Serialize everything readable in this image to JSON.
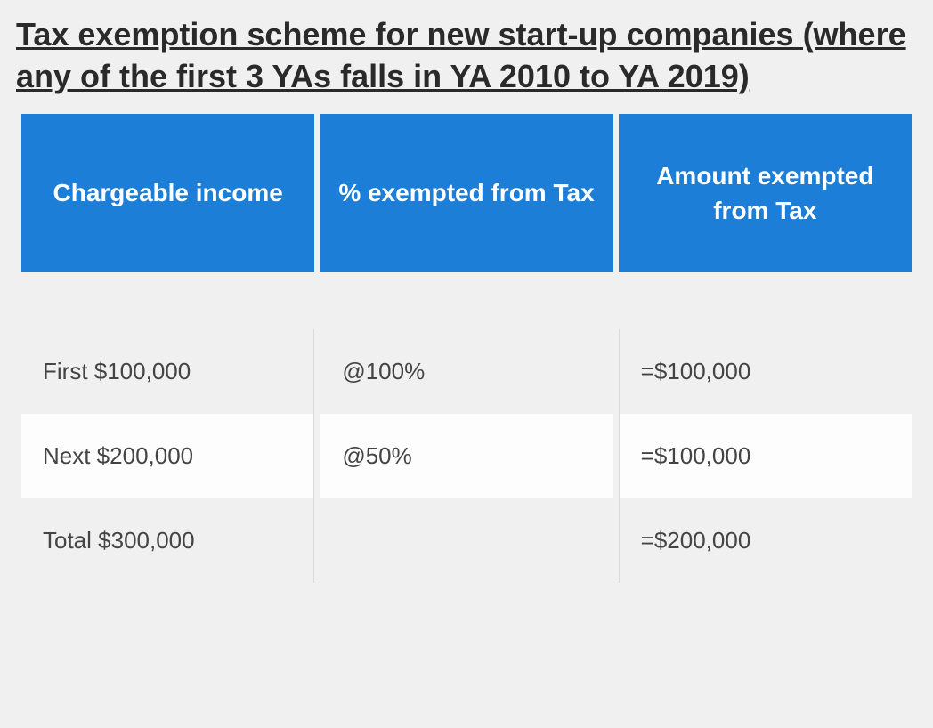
{
  "title": "Tax exemption scheme for new start-up companies (where any of the first 3 YAs falls in YA 2010 to YA 2019)",
  "table": {
    "type": "table",
    "header_bg": "#1c7ed6",
    "header_fg": "#ffffff",
    "body_bg": "#f0f0f0",
    "alt_bg": "#fdfdfd",
    "text_color": "#444444",
    "border_color": "#d9d9d9",
    "header_fontsize": 28,
    "body_fontsize": 26,
    "columns": [
      "Chargeable income",
      "% exempted from Tax",
      "Amount exempted from Tax"
    ],
    "rows": [
      {
        "chargeable": "First $100,000",
        "pct": "@100%",
        "amount": "=$100,000",
        "alt": false
      },
      {
        "chargeable": "Next $200,000",
        "pct": "@50%",
        "amount": "=$100,000",
        "alt": true
      },
      {
        "chargeable": "Total $300,000",
        "pct": "",
        "amount": "=$200,000",
        "alt": false
      }
    ]
  }
}
